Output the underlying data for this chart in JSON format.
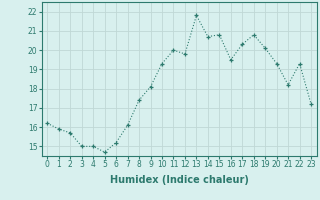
{
  "x": [
    0,
    1,
    2,
    3,
    4,
    5,
    6,
    7,
    8,
    9,
    10,
    11,
    12,
    13,
    14,
    15,
    16,
    17,
    18,
    19,
    20,
    21,
    22,
    23
  ],
  "y": [
    16.2,
    15.9,
    15.7,
    15.0,
    15.0,
    14.7,
    15.2,
    16.1,
    17.4,
    18.1,
    19.3,
    20.0,
    19.8,
    21.8,
    20.7,
    20.8,
    19.5,
    20.3,
    20.8,
    20.1,
    19.3,
    18.2,
    19.3,
    17.2
  ],
  "line_color": "#2d7a6e",
  "bg_color": "#d8f0ee",
  "grid_color": "#c0d8d5",
  "xlabel": "Humidex (Indice chaleur)",
  "xlim": [
    -0.5,
    23.5
  ],
  "ylim": [
    14.5,
    22.5
  ],
  "yticks": [
    15,
    16,
    17,
    18,
    19,
    20,
    21,
    22
  ],
  "xticks": [
    0,
    1,
    2,
    3,
    4,
    5,
    6,
    7,
    8,
    9,
    10,
    11,
    12,
    13,
    14,
    15,
    16,
    17,
    18,
    19,
    20,
    21,
    22,
    23
  ],
  "tick_fontsize": 5.5,
  "label_fontsize": 7
}
